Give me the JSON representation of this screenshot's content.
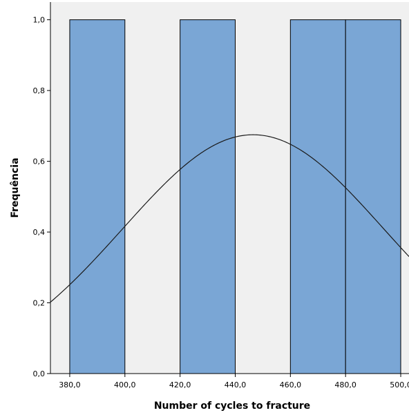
{
  "chart_data": {
    "type": "bar",
    "subtype": "histogram",
    "bins": [
      {
        "x0": 380,
        "x1": 400,
        "value": 1
      },
      {
        "x0": 400,
        "x1": 420,
        "value": 0
      },
      {
        "x0": 420,
        "x1": 440,
        "value": 1
      },
      {
        "x0": 440,
        "x1": 460,
        "value": 0
      },
      {
        "x0": 460,
        "x1": 480,
        "value": 1
      },
      {
        "x0": 480,
        "x1": 500,
        "value": 1
      }
    ],
    "normal_curve": {
      "mean": 446.5,
      "sd": 47.3,
      "peak": 0.675
    },
    "xlabel": "Number of cycles to fracture",
    "ylabel": "Frequência",
    "xlim": [
      373,
      503
    ],
    "ylim": [
      0,
      1.05
    ],
    "xticks": [
      380,
      400,
      420,
      440,
      460,
      480,
      500
    ],
    "xtick_labels": [
      "380,0",
      "400,0",
      "420,0",
      "440,0",
      "460,0",
      "480,0",
      "500,0"
    ],
    "yticks": [
      0,
      0.2,
      0.4,
      0.6,
      0.8,
      1.0
    ],
    "ytick_labels": [
      "0,0",
      "0,2",
      "0,4",
      "0,6",
      "0,8",
      "1,0"
    ],
    "grid": false,
    "colors": {
      "bar_fill": "#7aa6d5",
      "bar_stroke": "#000000",
      "plot_background": "#f0f0f0",
      "curve": "#1a1a1a"
    }
  }
}
